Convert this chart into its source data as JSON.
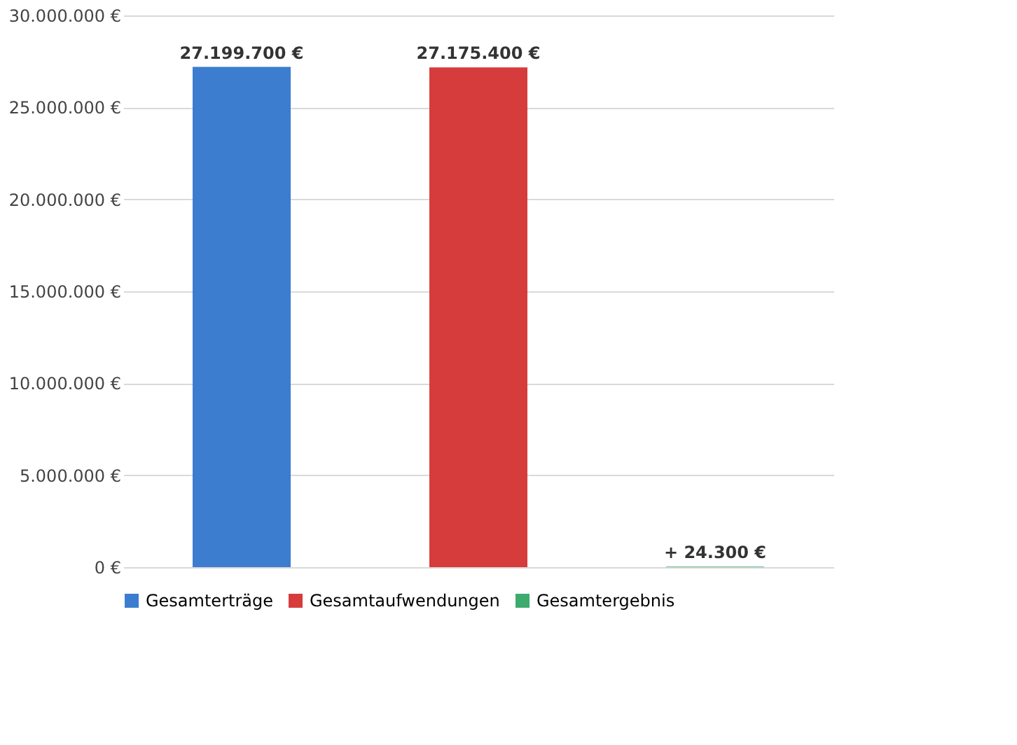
{
  "chart_data": {
    "type": "bar",
    "categories": [
      null,
      null,
      null
    ],
    "series": [
      {
        "name": "Gesamterträge",
        "color": "#3c7dd0",
        "values": [
          27199700,
          null,
          null
        ],
        "value_labels": [
          "27.199.700 €",
          null,
          null
        ]
      },
      {
        "name": "Gesamtaufwendungen",
        "color": "#d63c3c",
        "values": [
          null,
          27175400,
          null
        ],
        "value_labels": [
          null,
          "27.175.400 €",
          null
        ]
      },
      {
        "name": "Gesamtergebnis",
        "color": "#3daa6e",
        "values": [
          null,
          null,
          24300
        ],
        "value_labels": [
          null,
          null,
          "+ 24.300 €"
        ]
      }
    ],
    "ylim": [
      0,
      30000000
    ],
    "yticks": [
      {
        "value": 0,
        "label": "0 €"
      },
      {
        "value": 5000000,
        "label": "5.000.000 €"
      },
      {
        "value": 10000000,
        "label": "10.000.000 €"
      },
      {
        "value": 15000000,
        "label": "15.000.000 €"
      },
      {
        "value": 20000000,
        "label": "20.000.000 €"
      },
      {
        "value": 25000000,
        "label": "25.000.000 €"
      },
      {
        "value": 30000000,
        "label": "30.000.000 €"
      }
    ],
    "grid": "y",
    "legend": "bottom",
    "tick_labels": "y"
  }
}
